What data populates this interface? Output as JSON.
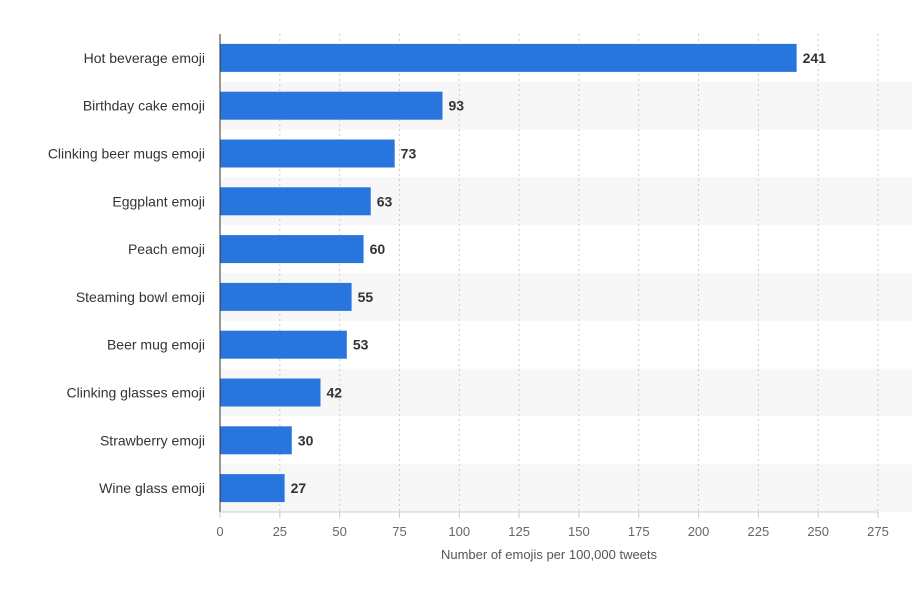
{
  "chart_data": {
    "type": "bar",
    "orientation": "horizontal",
    "categories": [
      "Hot beverage emoji",
      "Birthday cake emoji",
      "Clinking beer mugs emoji",
      "Eggplant emoji",
      "Peach emoji",
      "Steaming bowl emoji",
      "Beer mug emoji",
      "Clinking glasses emoji",
      "Strawberry emoji",
      "Wine glass emoji"
    ],
    "values": [
      241,
      93,
      73,
      63,
      60,
      55,
      53,
      42,
      30,
      27
    ],
    "xlabel": "Number of emojis per 100,000 tweets",
    "ylabel": "",
    "xlim": [
      0,
      275
    ],
    "xticks": [
      0,
      25,
      50,
      75,
      100,
      125,
      150,
      175,
      200,
      225,
      250,
      275
    ],
    "grid": "vertical-dotted",
    "data_labels": true,
    "colors": {
      "bar": "#2876dd",
      "band": "#f7f7f7",
      "grid": "#cccccc",
      "axis": "#333333"
    }
  }
}
